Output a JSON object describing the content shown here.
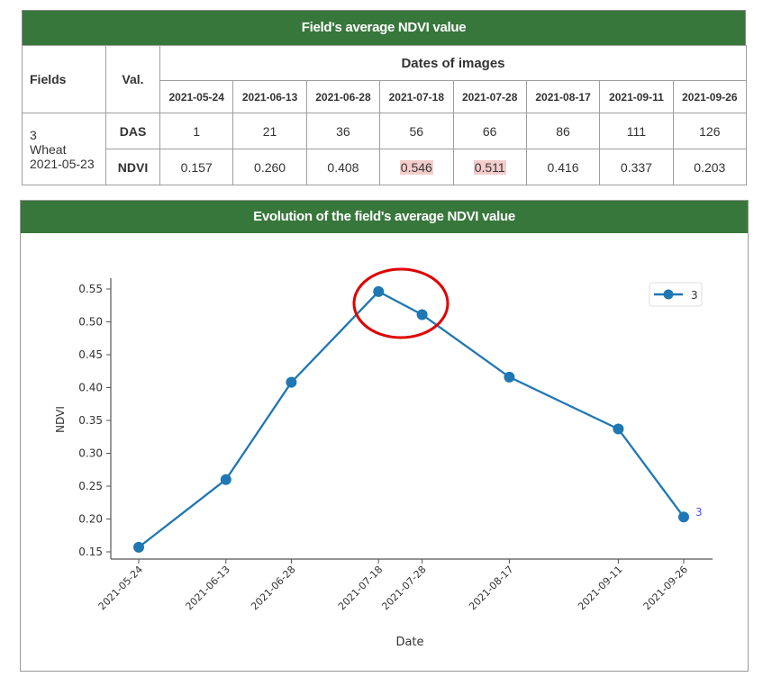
{
  "table": {
    "title": "Field's average NDVI value",
    "col_fields": "Fields",
    "col_val": "Val.",
    "dates_title": "Dates of images",
    "dates": [
      "2021-05-24",
      "2021-06-13",
      "2021-06-28",
      "2021-07-18",
      "2021-07-28",
      "2021-08-17",
      "2021-09-11",
      "2021-09-26"
    ],
    "field": {
      "id": "3",
      "crop": "Wheat",
      "sowing_date": "2021-05-23"
    },
    "rows": [
      {
        "label": "DAS",
        "values": [
          "1",
          "21",
          "36",
          "56",
          "66",
          "86",
          "111",
          "126"
        ]
      },
      {
        "label": "NDVI",
        "values": [
          "0.157",
          "0.260",
          "0.408",
          "0.546",
          "0.511",
          "0.416",
          "0.337",
          "0.203"
        ],
        "highlighted_indices": [
          3,
          4
        ]
      }
    ],
    "highlight_color": "#f4cccc",
    "header_color": "#38773b"
  },
  "chart_panel": {
    "title": "Evolution of the field's average NDVI value"
  },
  "chart_data": {
    "type": "line",
    "title": "Evolution of the field's average NDVI value",
    "xlabel": "Date",
    "ylabel": "NDVI",
    "x": [
      "2021-05-24",
      "2021-06-13",
      "2021-06-28",
      "2021-07-18",
      "2021-07-28",
      "2021-08-17",
      "2021-09-11",
      "2021-09-26"
    ],
    "series": [
      {
        "name": "3",
        "values": [
          0.157,
          0.26,
          0.408,
          0.546,
          0.511,
          0.416,
          0.337,
          0.203
        ],
        "color": "#1f77b4",
        "marker": "circle"
      }
    ],
    "y_ticks": [
      "0.15",
      "0.20",
      "0.25",
      "0.30",
      "0.35",
      "0.40",
      "0.45",
      "0.50",
      "0.55"
    ],
    "ylim": [
      0.14,
      0.565
    ],
    "grid": false,
    "legend": {
      "position": "upper right",
      "entries": [
        "3"
      ]
    },
    "end_label": "3",
    "annotation": {
      "type": "red ellipse",
      "around": [
        "2021-07-18",
        "2021-07-28"
      ],
      "color": "#e00000"
    }
  }
}
